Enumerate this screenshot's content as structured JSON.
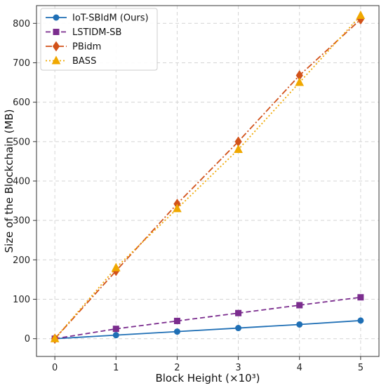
{
  "chart_data": {
    "type": "line",
    "xlabel": "Block Height (×10³)",
    "ylabel": "Size of the Blockchain (MB)",
    "xlim": [
      -0.3,
      5.3
    ],
    "ylim": [
      -45,
      845
    ],
    "x_ticks": [
      0,
      1,
      2,
      3,
      4,
      5
    ],
    "y_ticks": [
      0,
      100,
      200,
      300,
      400,
      500,
      600,
      700,
      800
    ],
    "grid": true,
    "legend_position": "top-left",
    "x": [
      0,
      1,
      2,
      3,
      4,
      5
    ],
    "series": [
      {
        "name": "IoT-SBIdM (Ours)",
        "values": [
          0,
          9,
          18,
          27,
          36,
          46
        ],
        "color": "#1f6fb5",
        "dash": "solid",
        "marker": "circle"
      },
      {
        "name": "LSTIDM-SB",
        "values": [
          0,
          25,
          45,
          65,
          85,
          105
        ],
        "color": "#7b2d8e",
        "dash": "dashed",
        "marker": "square"
      },
      {
        "name": "PBidm",
        "values": [
          0,
          172,
          342,
          500,
          668,
          810
        ],
        "color": "#d2521a",
        "dash": "dashdot",
        "marker": "diamond"
      },
      {
        "name": "BASS",
        "values": [
          0,
          180,
          330,
          480,
          650,
          820
        ],
        "color": "#f0a800",
        "dash": "dotted",
        "marker": "triangle"
      }
    ]
  }
}
